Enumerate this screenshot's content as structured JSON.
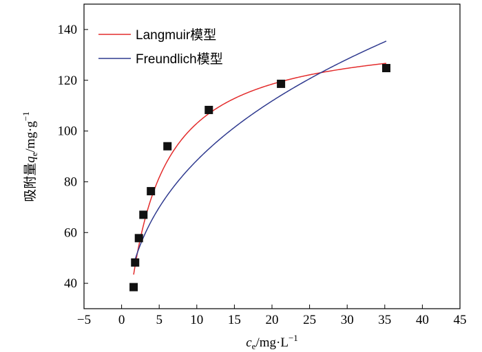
{
  "chart_data": {
    "type": "scatter",
    "xlabel": {
      "main": "c",
      "sub": "e",
      "rest": "/mg·L",
      "sup": "−1"
    },
    "ylabel": {
      "pre": "吸附量",
      "main": "q",
      "sub": "e",
      "rest": "/mg·g",
      "sup": "−1"
    },
    "xlim": [
      -5,
      45
    ],
    "ylim": [
      30,
      150
    ],
    "xticks": [
      -5,
      0,
      5,
      10,
      15,
      20,
      25,
      30,
      35,
      40,
      45
    ],
    "yticks": [
      40,
      60,
      80,
      100,
      120,
      140
    ],
    "xtick_labels": [
      "−5",
      "0",
      "5",
      "10",
      "15",
      "20",
      "25",
      "30",
      "35",
      "40",
      "45"
    ],
    "ytick_labels": [
      "40",
      "60",
      "80",
      "100",
      "120",
      "140"
    ],
    "points": {
      "x": [
        1.6,
        1.8,
        2.3,
        2.9,
        3.9,
        6.1,
        11.6,
        21.2,
        35.2
      ],
      "y": [
        38.5,
        48.2,
        57.8,
        67.0,
        76.3,
        94.0,
        108.3,
        118.6,
        124.8
      ]
    },
    "series": [
      {
        "name": "Langmuir模型",
        "color": "#e32b2b",
        "model": "langmuir",
        "params": {
          "qm": 139.4,
          "kl": 0.283
        },
        "x_range": [
          1.6,
          35.2
        ]
      },
      {
        "name": "Freundlich模型",
        "color": "#2f3a8f",
        "model": "freundlich",
        "params": {
          "kf": 40.5,
          "n": 2.95
        },
        "x_range": [
          1.6,
          35.2
        ]
      }
    ],
    "legend": {
      "placement": "top-left"
    },
    "grid": false
  }
}
